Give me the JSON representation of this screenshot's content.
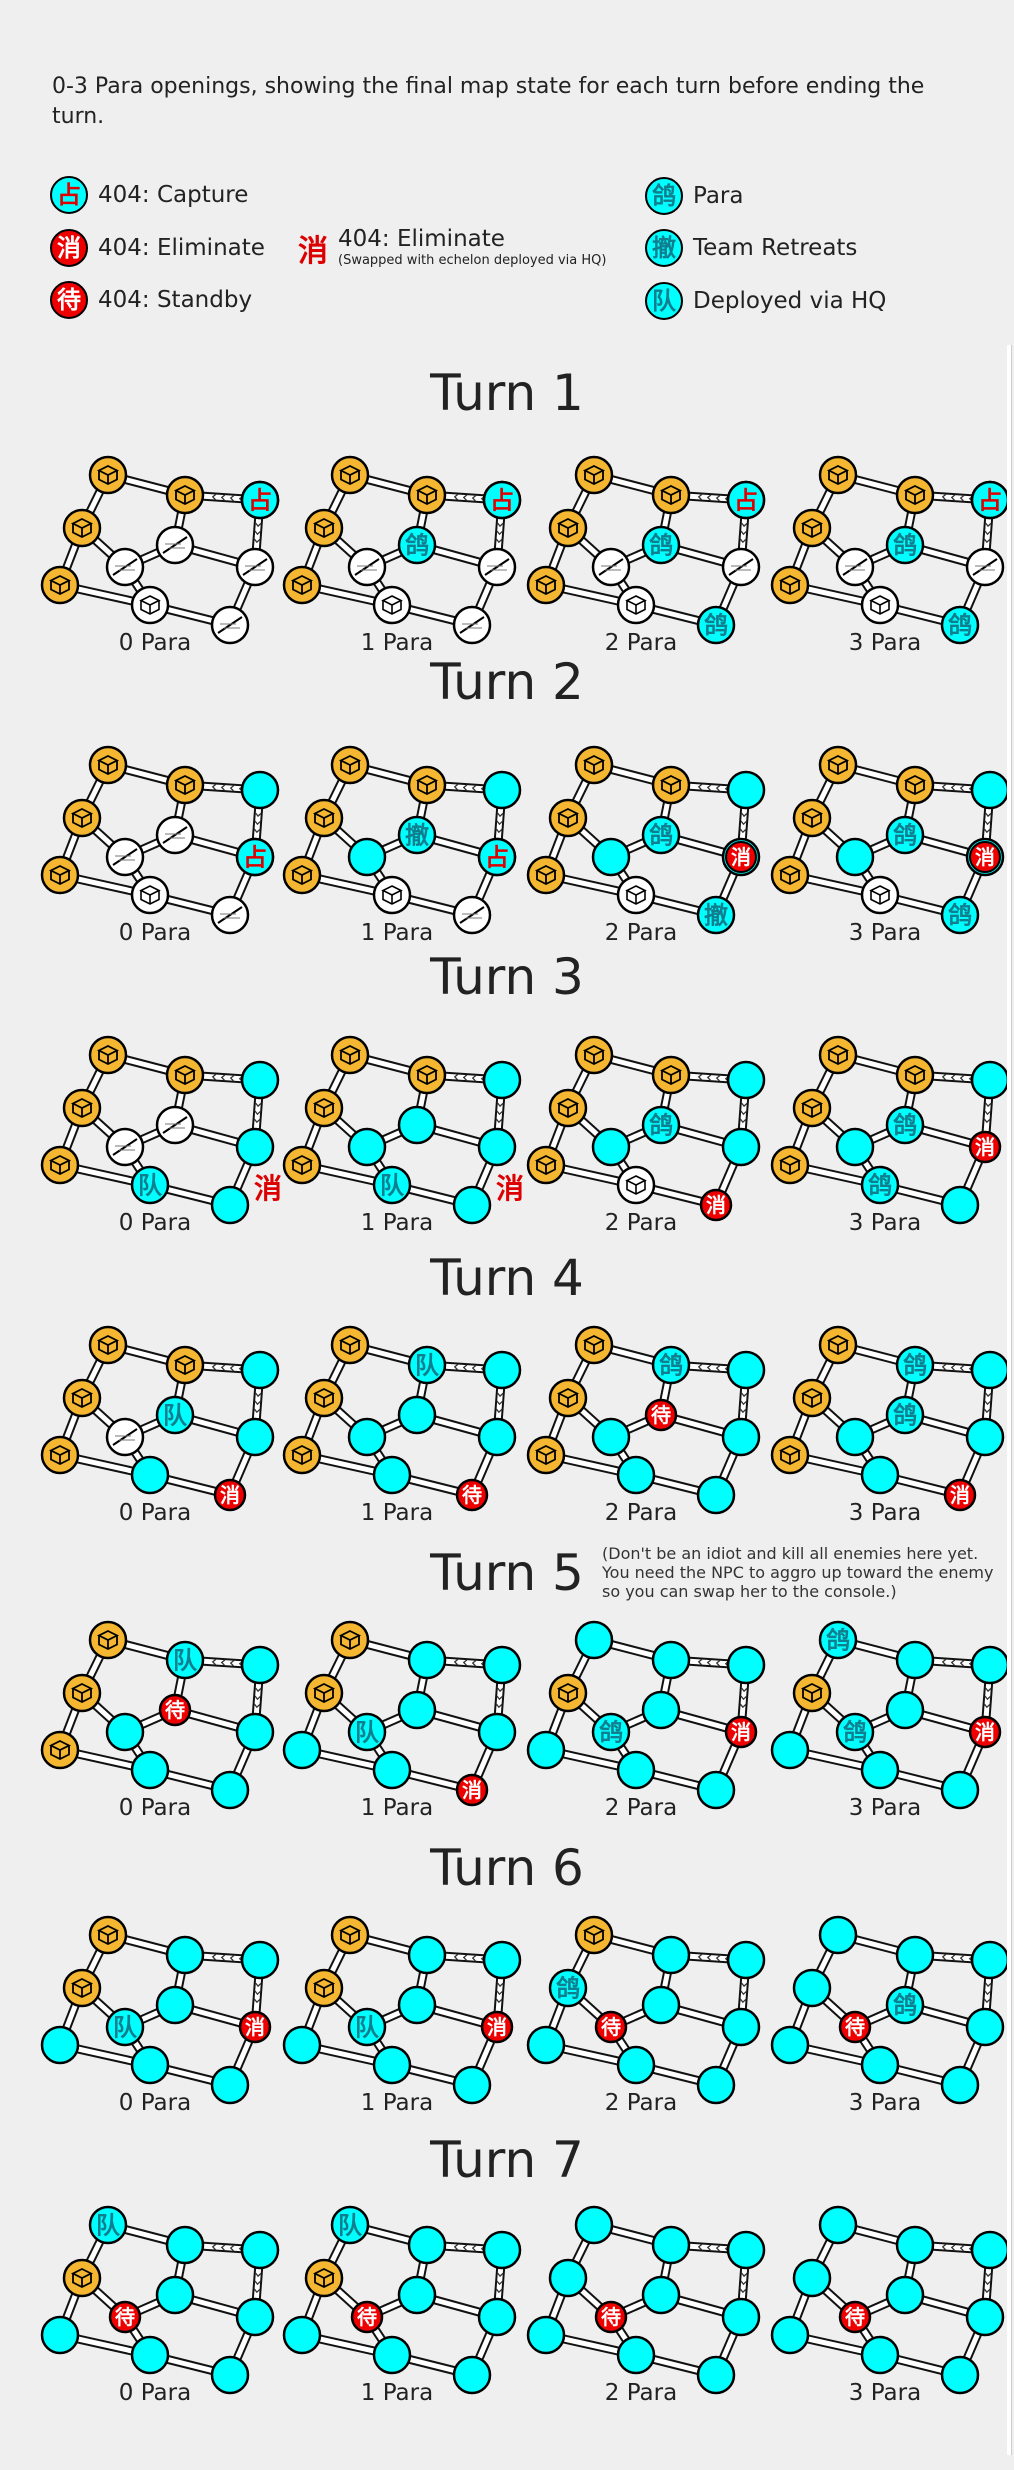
{
  "intro": "0-3 Para openings, showing the final map state for each turn before ending the turn.",
  "legend": [
    {
      "glyph": "占",
      "style": "cyan-red",
      "label": "404: Capture"
    },
    {
      "glyph": "消",
      "style": "red",
      "label": "404: Eliminate"
    },
    {
      "glyph": "待",
      "style": "red",
      "label": "404: Standby"
    },
    {
      "glyph": "消",
      "style": "plain-red",
      "label": "404: Eliminate",
      "sublabel": "(Swapped with echelon deployed via HQ)"
    },
    {
      "glyph": "鸽",
      "style": "cyan",
      "label": "Para"
    },
    {
      "glyph": "撤",
      "style": "cyan",
      "label": "Team Retreats"
    },
    {
      "glyph": "队",
      "style": "cyan",
      "label": "Deployed via HQ"
    }
  ],
  "turns": [
    {
      "title": "Turn 1",
      "maps": [
        {
          "label": "0 Para",
          "nodes": [
            "H",
            "H",
            "H",
            "H",
            "C",
            "W",
            "W",
            "E",
            "WK",
            "E"
          ],
          "marks": {
            "4": "占r"
          }
        },
        {
          "label": "1 Para",
          "nodes": [
            "H",
            "H",
            "H",
            "H",
            "C",
            "W",
            "P",
            "E",
            "WK",
            "E"
          ],
          "marks": {
            "4": "占r"
          }
        },
        {
          "label": "2 Para",
          "nodes": [
            "H",
            "H",
            "H",
            "H",
            "C",
            "W",
            "P",
            "E",
            "WK",
            "P"
          ],
          "marks": {
            "4": "占r"
          }
        },
        {
          "label": "3 Para",
          "nodes": [
            "H",
            "H",
            "H",
            "H",
            "C",
            "W",
            "P",
            "E",
            "WK",
            "P"
          ],
          "marks": {
            "4": "占r"
          }
        }
      ]
    },
    {
      "title": "Turn 2",
      "maps": [
        {
          "label": "0 Para",
          "nodes": [
            "H",
            "H",
            "H",
            "H",
            "C",
            "E",
            "E",
            "C",
            "WK",
            "E"
          ],
          "marks": {
            "7": "占r"
          }
        },
        {
          "label": "1 Para",
          "nodes": [
            "H",
            "H",
            "H",
            "H",
            "C",
            "C",
            "R",
            "C",
            "WK",
            "E"
          ],
          "marks": {
            "7": "占r"
          }
        },
        {
          "label": "2 Para",
          "nodes": [
            "H",
            "H",
            "H",
            "H",
            "C",
            "C",
            "P",
            "R2",
            "WK",
            "R"
          ],
          "marks": {
            "7": "消"
          }
        },
        {
          "label": "3 Para",
          "nodes": [
            "H",
            "H",
            "H",
            "H",
            "C",
            "C",
            "P",
            "R2",
            "WK",
            "P"
          ],
          "marks": {
            "7": "消"
          }
        }
      ]
    },
    {
      "title": "Turn 3",
      "maps": [
        {
          "label": "0 Para",
          "nodes": [
            "H",
            "H",
            "H",
            "H",
            "C",
            "E",
            "E",
            "C",
            "D",
            "C"
          ],
          "marks": {},
          "side": "消"
        },
        {
          "label": "1 Para",
          "nodes": [
            "H",
            "H",
            "H",
            "H",
            "C",
            "C",
            "C",
            "C",
            "D",
            "C"
          ],
          "marks": {},
          "side": "消"
        },
        {
          "label": "2 Para",
          "nodes": [
            "H",
            "H",
            "H",
            "H",
            "C",
            "C",
            "P",
            "C",
            "WK",
            "X"
          ],
          "marks": {}
        },
        {
          "label": "3 Para",
          "nodes": [
            "H",
            "H",
            "H",
            "H",
            "C",
            "C",
            "P",
            "X",
            "P",
            "C"
          ],
          "marks": {}
        }
      ]
    },
    {
      "title": "Turn 4",
      "maps": [
        {
          "label": "0 Para",
          "nodes": [
            "H",
            "H",
            "H",
            "H",
            "C",
            "E",
            "D",
            "C",
            "C",
            "X"
          ],
          "marks": {}
        },
        {
          "label": "1 Para",
          "nodes": [
            "H",
            "D",
            "H",
            "H",
            "C",
            "C",
            "C",
            "C",
            "C",
            "S"
          ],
          "marks": {}
        },
        {
          "label": "2 Para",
          "nodes": [
            "H",
            "P",
            "H",
            "H",
            "C",
            "C",
            "S",
            "C",
            "C",
            "C"
          ],
          "marks": {}
        },
        {
          "label": "3 Para",
          "nodes": [
            "H",
            "P",
            "H",
            "H",
            "C",
            "C",
            "P",
            "C",
            "C",
            "X"
          ],
          "marks": {}
        }
      ]
    },
    {
      "title": "Turn 5",
      "maps": [
        {
          "label": "0 Para",
          "nodes": [
            "H",
            "D",
            "H",
            "H",
            "C",
            "C",
            "S",
            "C",
            "C",
            "C"
          ],
          "marks": {}
        },
        {
          "label": "1 Para",
          "nodes": [
            "H",
            "C",
            "H",
            "C",
            "C",
            "D",
            "C",
            "C",
            "C",
            "X"
          ],
          "marks": {}
        },
        {
          "label": "2 Para",
          "nodes": [
            "C",
            "C",
            "H",
            "C",
            "C",
            "P",
            "C",
            "X",
            "C",
            "C"
          ],
          "marks": {}
        },
        {
          "label": "3 Para",
          "nodes": [
            "P",
            "C",
            "H",
            "C",
            "C",
            "P",
            "C",
            "X",
            "C",
            "C"
          ],
          "marks": {}
        }
      ]
    },
    {
      "title": "Turn 6",
      "maps": [
        {
          "label": "0 Para",
          "nodes": [
            "H",
            "C",
            "H",
            "C",
            "C",
            "D",
            "C",
            "X",
            "C",
            "C"
          ],
          "marks": {}
        },
        {
          "label": "1 Para",
          "nodes": [
            "H",
            "C",
            "H",
            "C",
            "C",
            "D",
            "C",
            "X",
            "C",
            "C"
          ],
          "marks": {}
        },
        {
          "label": "2 Para",
          "nodes": [
            "H",
            "C",
            "P",
            "C",
            "C",
            "S",
            "C",
            "C",
            "C",
            "C"
          ],
          "marks": {}
        },
        {
          "label": "3 Para",
          "nodes": [
            "C",
            "C",
            "C",
            "C",
            "C",
            "S",
            "P",
            "C",
            "C",
            "C"
          ],
          "marks": {}
        }
      ]
    },
    {
      "title": "Turn 7",
      "maps": [
        {
          "label": "0 Para",
          "nodes": [
            "D",
            "C",
            "H",
            "C",
            "C",
            "S",
            "C",
            "C",
            "C",
            "C"
          ],
          "marks": {}
        },
        {
          "label": "1 Para",
          "nodes": [
            "D",
            "C",
            "H",
            "C",
            "C",
            "S",
            "C",
            "C",
            "C",
            "C"
          ],
          "marks": {}
        },
        {
          "label": "2 Para",
          "nodes": [
            "C",
            "C",
            "C",
            "C",
            "C",
            "S",
            "C",
            "C",
            "C",
            "C"
          ],
          "marks": {}
        },
        {
          "label": "3 Para",
          "nodes": [
            "C",
            "C",
            "C",
            "C",
            "C",
            "S",
            "C",
            "C",
            "C",
            "C"
          ],
          "marks": {}
        }
      ]
    }
  ],
  "note": "(Don't be an idiot and kill all enemies here yet. You need the NPC to aggro up toward the enemy so you can swap her to the console.)",
  "colors": {
    "heliport": "#f5b731",
    "cyan": "#00ffff",
    "red": "#ee0000",
    "background": "#efefef"
  },
  "glyphs": {
    "P": "鸽",
    "R": "撤",
    "D": "队",
    "X": "消",
    "S": "待",
    "O": "占"
  }
}
